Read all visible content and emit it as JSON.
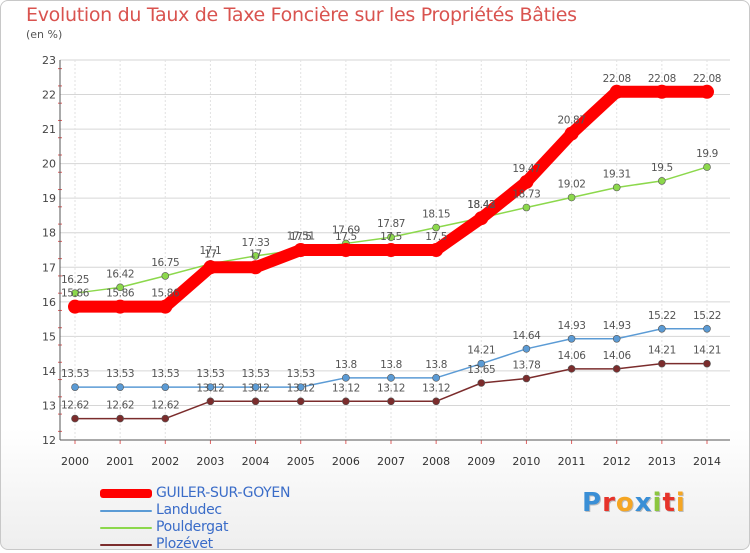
{
  "header": {
    "title": "Evolution du Taux de Taxe Foncière sur les Propriétés Bâties",
    "unit_note": "(en %)"
  },
  "logo": {
    "text": "Proxiti",
    "letter_colors": [
      "#3a8fd6",
      "#e6332a",
      "#f5a623",
      "#3a8fd6",
      "#8cc63f",
      "#e6332a",
      "#f5a623"
    ]
  },
  "chart_data": {
    "type": "line",
    "x": [
      2000,
      2001,
      2002,
      2003,
      2004,
      2005,
      2006,
      2007,
      2008,
      2009,
      2010,
      2011,
      2012,
      2013,
      2014
    ],
    "ylim": [
      12,
      23
    ],
    "yticks": [
      12,
      13,
      14,
      15,
      16,
      17,
      18,
      19,
      20,
      21,
      22,
      23
    ],
    "grid": true,
    "legend_placement": "bottom-left",
    "series": [
      {
        "name": "GUILER-SUR-GOYEN",
        "color": "#ff0000",
        "values": [
          15.86,
          15.86,
          15.86,
          17.0,
          17.0,
          17.5,
          17.5,
          17.5,
          17.5,
          18.42,
          19.47,
          20.87,
          22.08,
          22.08,
          22.08
        ],
        "labels": [
          "15.86",
          "15.86",
          "15.86",
          "17",
          "17",
          "17.5",
          "17.5",
          "17.5",
          "17.5",
          "18.42",
          "19.47",
          "20.87",
          "22.08",
          "22.08",
          "22.08"
        ]
      },
      {
        "name": "Landudec",
        "color": "#5b9bd5",
        "values": [
          13.53,
          13.53,
          13.53,
          13.53,
          13.53,
          13.53,
          13.8,
          13.8,
          13.8,
          14.21,
          14.64,
          14.93,
          14.93,
          15.22,
          15.22
        ],
        "labels": [
          "13.53",
          "13.53",
          "13.53",
          "13.53",
          "13.53",
          "13.53",
          "13.8",
          "13.8",
          "13.8",
          "14.21",
          "14.64",
          "14.93",
          "14.93",
          "15.22",
          "15.22"
        ]
      },
      {
        "name": "Pouldergat",
        "color": "#8cd84c",
        "values": [
          16.25,
          16.42,
          16.75,
          17.1,
          17.33,
          17.51,
          17.69,
          17.87,
          18.15,
          18.43,
          18.73,
          19.02,
          19.31,
          19.5,
          19.9
        ],
        "labels": [
          "16.25",
          "16.42",
          "16.75",
          "17.1",
          "17.33",
          "17.51",
          "17.69",
          "17.87",
          "18.15",
          "18.43",
          "18.73",
          "19.02",
          "19.31",
          "19.5",
          "19.9"
        ]
      },
      {
        "name": "Plozévet",
        "color": "#7b2c2c",
        "values": [
          12.62,
          12.62,
          12.62,
          13.12,
          13.12,
          13.12,
          13.12,
          13.12,
          13.12,
          13.65,
          13.78,
          14.06,
          14.06,
          14.21,
          14.21
        ],
        "labels": [
          "12.62",
          "12.62",
          "12.62",
          "13.12",
          "13.12",
          "13.12",
          "13.12",
          "13.12",
          "13.12",
          "13.65",
          "13.78",
          "14.06",
          "14.06",
          "14.21",
          "14.21"
        ]
      }
    ]
  }
}
